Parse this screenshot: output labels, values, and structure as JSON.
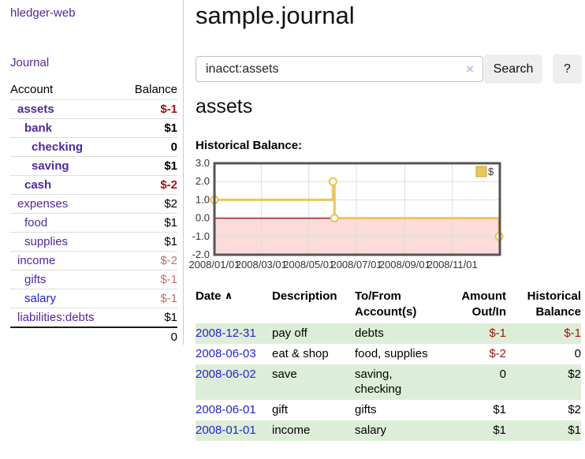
{
  "app": {
    "brand": "hledger-web"
  },
  "sidebar": {
    "journal_link": "Journal",
    "accounts": {
      "header_account": "Account",
      "header_balance": "Balance",
      "rows": [
        {
          "name": "assets",
          "balance": "$-1"
        },
        {
          "name": "bank",
          "balance": "$1"
        },
        {
          "name": "checking",
          "balance": "0"
        },
        {
          "name": "saving",
          "balance": "$1"
        },
        {
          "name": "cash",
          "balance": "$-2"
        },
        {
          "name": "expenses",
          "balance": "$2"
        },
        {
          "name": "food",
          "balance": "$1"
        },
        {
          "name": "supplies",
          "balance": "$1"
        },
        {
          "name": "income",
          "balance": "$-2"
        },
        {
          "name": "gifts",
          "balance": "$-1"
        },
        {
          "name": "salary",
          "balance": "$-1"
        },
        {
          "name": "liabilities:debts",
          "balance": "$1"
        }
      ],
      "total": "0"
    }
  },
  "main": {
    "title": "sample.journal",
    "search": {
      "value": "inacct:assets",
      "clear_icon": "×",
      "search_button": "Search",
      "help_button": "?"
    },
    "account_heading": "assets",
    "chart_label": "Historical Balance:",
    "register": {
      "headers": {
        "date": "Date",
        "sort_icon": "∧",
        "description": "Description",
        "account": "To/From Account(s)",
        "amount": "Amount Out/In",
        "balance": "Historical Balance"
      },
      "rows": [
        {
          "date": "2008-12-31",
          "description": "pay off",
          "account": "debts",
          "amount": "$-1",
          "balance": "$-1"
        },
        {
          "date": "2008-06-03",
          "description": "eat & shop",
          "account": "food, supplies",
          "amount": "$-2",
          "balance": "0"
        },
        {
          "date": "2008-06-02",
          "description": "save",
          "account": "saving, checking",
          "amount": "0",
          "balance": "$2"
        },
        {
          "date": "2008-06-01",
          "description": "gift",
          "account": "gifts",
          "amount": "$1",
          "balance": "$2"
        },
        {
          "date": "2008-01-01",
          "description": "income",
          "account": "salary",
          "amount": "$1",
          "balance": "$1"
        }
      ]
    }
  },
  "chart_data": {
    "type": "line",
    "step": true,
    "title": "Historical Balance:",
    "series": [
      {
        "name": "$",
        "color": "#e9c65c",
        "points": [
          [
            "2008-01-01",
            1
          ],
          [
            "2008-06-01",
            2
          ],
          [
            "2008-06-03",
            0
          ],
          [
            "2008-12-31",
            -1
          ]
        ]
      }
    ],
    "x_range": [
      "2008-01-01",
      "2009-01-01"
    ],
    "x_ticks": [
      "2008/01/01",
      "2008/03/01",
      "2008/05/01",
      "2008/07/01",
      "2008/09/01",
      "2008/11/01"
    ],
    "y_ticks": [
      3,
      2,
      1,
      0,
      -1,
      -2
    ],
    "ylim": [
      -2,
      3
    ],
    "grid": true,
    "legend": {
      "label": "$",
      "position": "top-right"
    },
    "negative_fill": "#fcdbdb",
    "zero_line_color": "#8b0000"
  },
  "colors": {
    "link_purple": "#53279c",
    "link_blue": "#2323cf",
    "negative_strong": "#a31212",
    "negative_soft": "#c96a6a",
    "row_green": "#ddeed8",
    "chart_gold": "#e9c65c",
    "chart_border": "#555555",
    "grid": "#dddddd"
  }
}
